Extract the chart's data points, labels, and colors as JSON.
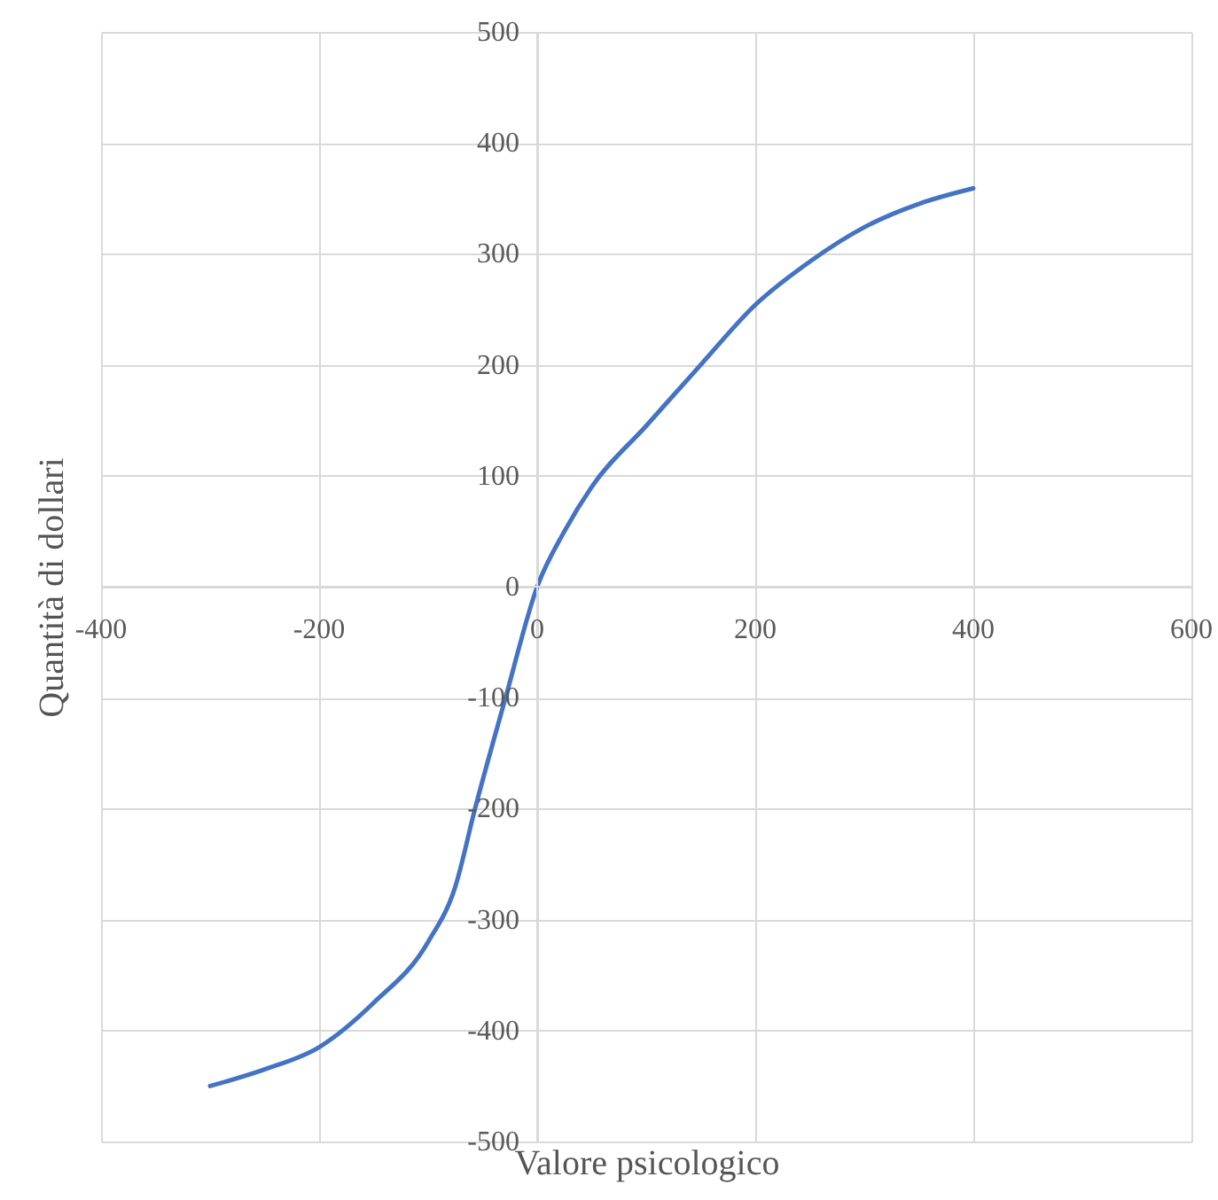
{
  "chart_data": {
    "type": "line",
    "xlabel": "Valore psicologico",
    "ylabel": "Quantità di dollari",
    "xlim": [
      -400,
      600
    ],
    "xticks": [
      -400,
      -200,
      0,
      200,
      400,
      600
    ],
    "ylim": [
      -500,
      500
    ],
    "yticks": [
      -500,
      -400,
      -300,
      -200,
      -100,
      0,
      100,
      200,
      300,
      400,
      500
    ],
    "grid": true,
    "marker": "none",
    "line_style": "solid",
    "series": [
      {
        "color": "#4472c4",
        "x": [
          -300,
          -250,
          -200,
          -150,
          -100,
          -75,
          -57,
          -29,
          0,
          25,
          50,
          100,
          150,
          200,
          250,
          300,
          350,
          400
        ],
        "values": [
          -450,
          -435,
          -415,
          -375,
          -320,
          -270,
          -200,
          -100,
          0,
          50,
          90,
          145,
          200,
          254,
          293,
          324,
          345,
          359
        ]
      }
    ]
  }
}
